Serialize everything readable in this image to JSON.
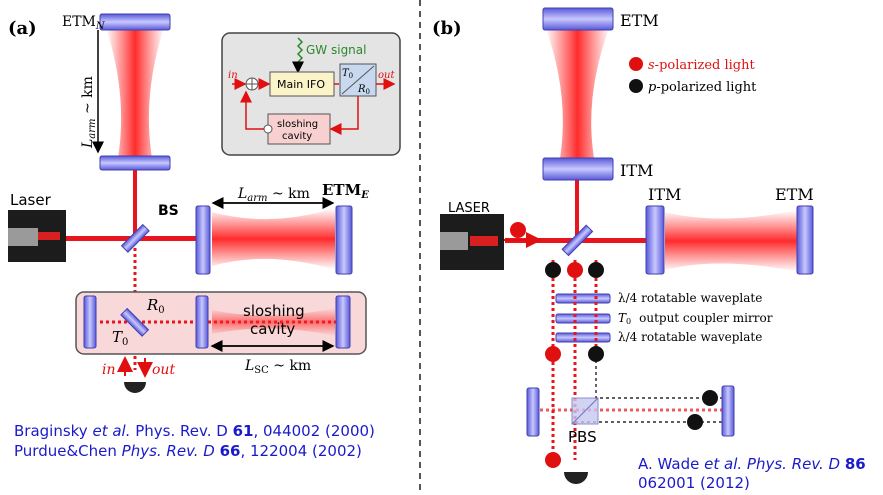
{
  "panel_a": {
    "label": "(a)",
    "etm_n": "ETM",
    "etm_n_sub": "N",
    "l_arm_vertical": "L",
    "l_arm_sub": "arm",
    "l_arm_suffix": " ~ km",
    "laser": "Laser",
    "bs": "BS",
    "l_arm_horizontal_prefix": "L",
    "l_arm_horizontal_suffix": " ~ km",
    "etm_e": "ETM",
    "etm_e_sub": "E",
    "r0": "R",
    "r0_sub": "0",
    "t0": "T",
    "t0_sub": "0",
    "sloshing_cavity_line1": "sloshing",
    "sloshing_cavity_line2": "cavity",
    "l_sc": "L",
    "l_sc_sub": "SC",
    "l_sc_suffix": " ~ km",
    "in": "in",
    "out": "out",
    "inset": {
      "gw_signal": "GW signal",
      "main_ifo": "Main IFO",
      "in": "in",
      "out": "out",
      "t0": "T",
      "t0_sub": "0",
      "r0": "R",
      "r0_sub": "0",
      "sloshing_cavity_line1": "sloshing",
      "sloshing_cavity_line2": "cavity"
    },
    "refs": [
      {
        "author": "Braginsky",
        "etal": " et al.",
        "journal": " Phys. Rev. D ",
        "volume": "61",
        "rest": ", 044002 (2000)"
      },
      {
        "author": "Purdue&Chen",
        "etal": "",
        "journal": " Phys. Rev. D ",
        "volume": "66",
        "rest": ", 122004 (2002)"
      }
    ]
  },
  "panel_b": {
    "label": "(b)",
    "etm_top": "ETM",
    "itm_top": "ITM",
    "itm_right": "ITM",
    "etm_right": "ETM",
    "laser": "LASER",
    "legend_s_prefix": "s",
    "legend_s_suffix": "-polarized light",
    "legend_p_prefix": "p",
    "legend_p_suffix": "-polarized light",
    "waveplate1": "λ/4  rotatable waveplate",
    "coupler_symbol": "T",
    "coupler_sub": "0",
    "coupler_text": "output coupler mirror",
    "waveplate2": "λ/4  rotatable waveplate",
    "pbs": "PBS",
    "ref": {
      "author": "A. Wade ",
      "etal": "et al.",
      "journal": " Phys. Rev. D ",
      "volume": "86",
      "line2": "062001 (2012)"
    }
  },
  "colors": {
    "beam": "#e8141e",
    "mirror": "#7070e0",
    "text_red": "#e01010",
    "text_blue": "#1a1acc",
    "green": "#2a8a2a"
  }
}
